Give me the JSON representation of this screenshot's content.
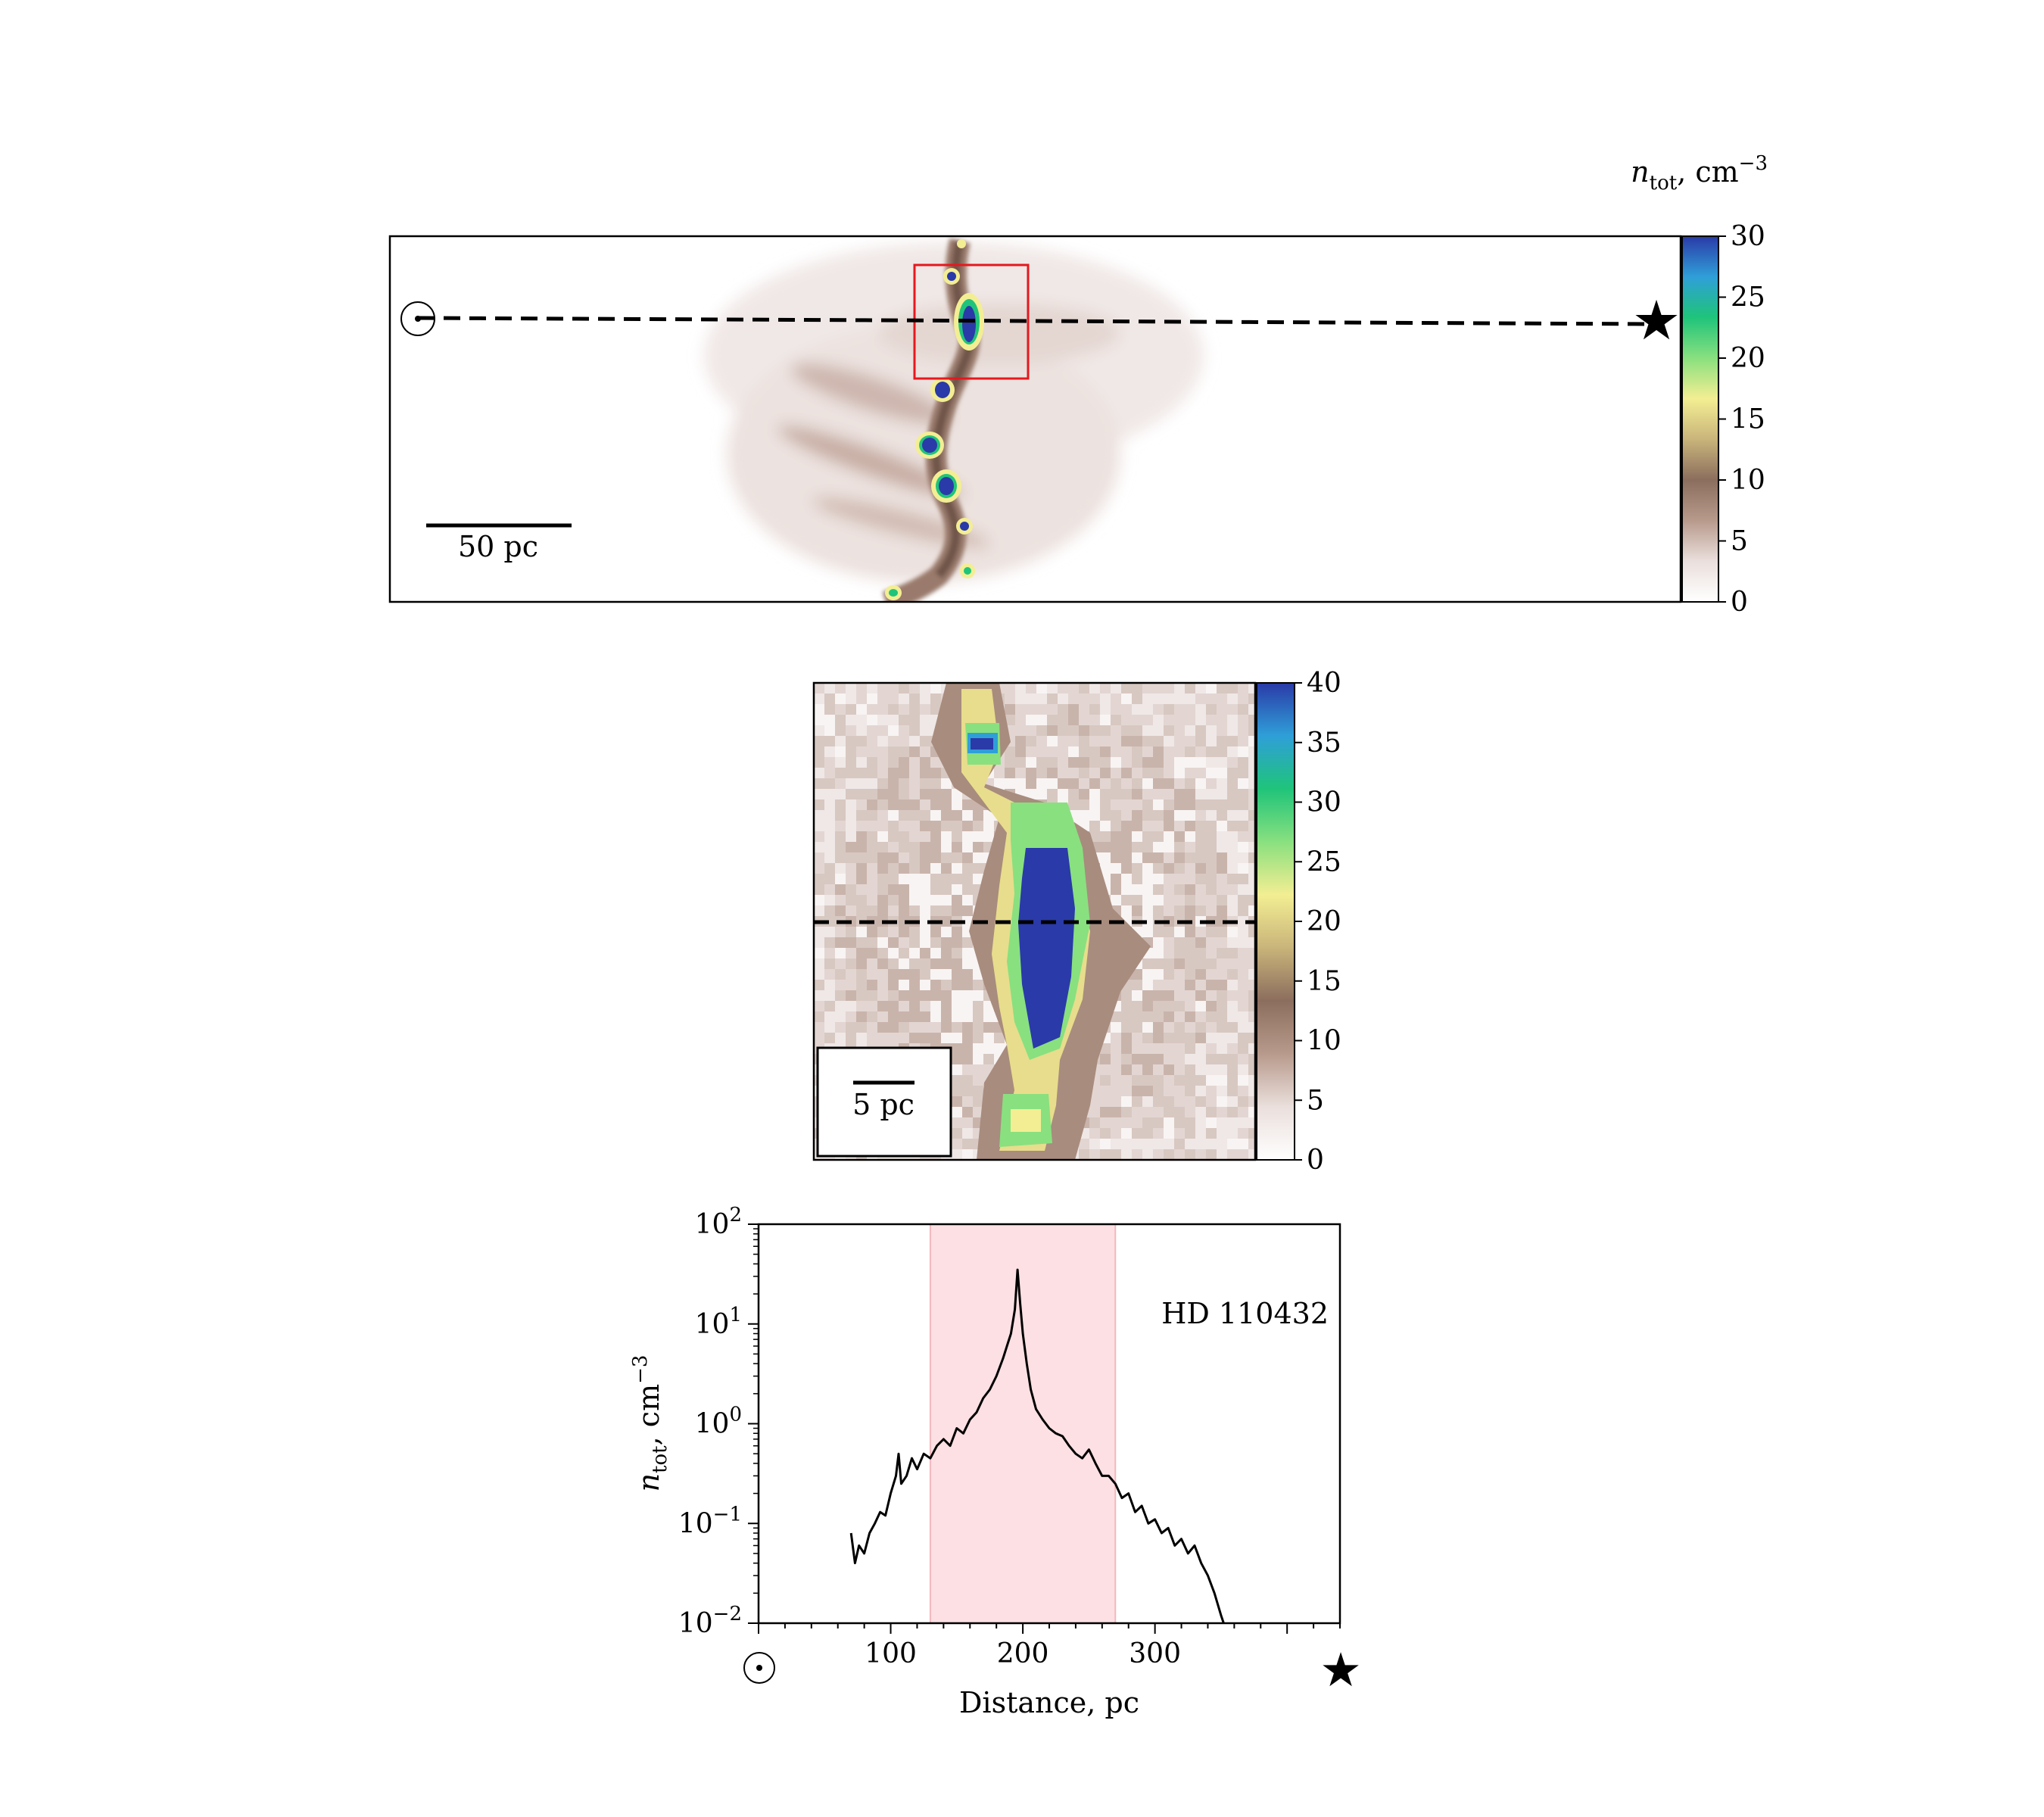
{
  "panel_top": {
    "colorbar_title": "n_tot, cm^-3",
    "colorbar_title_main": "n",
    "colorbar_title_sub": "tot",
    "colorbar_title_rest": ", cm",
    "colorbar_title_sup": "−3",
    "colorbar_ticks": [
      "0",
      "5",
      "10",
      "15",
      "20",
      "25",
      "30"
    ],
    "colorbar_range": [
      0,
      30
    ],
    "scalebar_label": "50 pc",
    "sun_symbol": "⊙",
    "star_symbol": "★"
  },
  "panel_middle": {
    "colorbar_ticks": [
      "0",
      "5",
      "10",
      "15",
      "20",
      "25",
      "30",
      "35",
      "40"
    ],
    "colorbar_range": [
      0,
      40
    ],
    "scalebar_label": "5 pc"
  },
  "colormap": [
    "#ffffff",
    "#eadfdc",
    "#b89a8c",
    "#8c6e5e",
    "#c9b47a",
    "#f3ee93",
    "#89e07f",
    "#1fc47a",
    "#2f9fd8",
    "#2a3aa8"
  ],
  "chart_data": {
    "type": "line",
    "annotation": "HD 110432",
    "xlabel": "Distance, pc",
    "ylabel_main": "n",
    "ylabel_sub": "tot",
    "ylabel_rest": ", cm",
    "ylabel_sup": "−3",
    "xlim": [
      0,
      440
    ],
    "ylim": [
      0.01,
      100
    ],
    "yscale": "log",
    "x_ticks": [
      "100",
      "200",
      "300"
    ],
    "y_tick_base": "10",
    "y_tick_exponents": [
      "−2",
      "−1",
      "0",
      "1",
      "2"
    ],
    "shaded_region": [
      130,
      270
    ],
    "sun_symbol": "⊙",
    "star_symbol": "★",
    "x": [
      70,
      73,
      76,
      80,
      84,
      88,
      92,
      96,
      100,
      104,
      106,
      108,
      112,
      116,
      120,
      125,
      130,
      135,
      140,
      145,
      150,
      155,
      160,
      165,
      170,
      175,
      180,
      185,
      188,
      191,
      194,
      196,
      198,
      200,
      203,
      206,
      210,
      215,
      220,
      225,
      230,
      235,
      240,
      245,
      250,
      255,
      260,
      265,
      270,
      275,
      280,
      285,
      290,
      295,
      300,
      305,
      310,
      315,
      320,
      325,
      330,
      335,
      340,
      345,
      350,
      352
    ],
    "y": [
      0.08,
      0.04,
      0.06,
      0.05,
      0.08,
      0.1,
      0.13,
      0.12,
      0.2,
      0.3,
      0.5,
      0.25,
      0.3,
      0.45,
      0.35,
      0.5,
      0.45,
      0.6,
      0.7,
      0.6,
      0.9,
      0.8,
      1.1,
      1.3,
      1.8,
      2.2,
      3.0,
      4.5,
      6.0,
      8.0,
      14.0,
      35.0,
      16.0,
      8.0,
      4.0,
      2.2,
      1.4,
      1.1,
      0.9,
      0.8,
      0.75,
      0.6,
      0.5,
      0.45,
      0.55,
      0.4,
      0.3,
      0.3,
      0.25,
      0.18,
      0.2,
      0.13,
      0.15,
      0.1,
      0.11,
      0.08,
      0.09,
      0.06,
      0.07,
      0.05,
      0.06,
      0.04,
      0.03,
      0.02,
      0.012,
      0.01
    ]
  }
}
